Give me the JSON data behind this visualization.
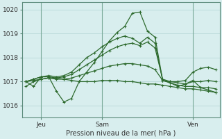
{
  "title": "Pression niveau de la mer( hPa )",
  "background_color": "#d8eeee",
  "grid_color": "#b8d8d8",
  "line_color": "#2d6a2d",
  "ylim": [
    1015.5,
    1020.3
  ],
  "yticks": [
    1016,
    1017,
    1018,
    1019,
    1020
  ],
  "xtick_labels": [
    "Jeu",
    "Sam",
    "Ven"
  ],
  "xtick_positions": [
    2,
    10,
    22
  ],
  "vline_positions": [
    2,
    10,
    22
  ],
  "series": [
    [
      1017.0,
      1016.8,
      1017.2,
      1017.2,
      1016.6,
      1016.15,
      1016.3,
      1017.0,
      1017.4,
      1017.8,
      1018.25,
      1018.7,
      1019.05,
      1019.3,
      1019.85,
      1019.9,
      1019.1,
      1018.85,
      1017.05,
      1016.95,
      1016.8,
      1016.9,
      1017.05,
      1016.75,
      1016.65,
      1016.55
    ],
    [
      1017.0,
      1017.1,
      1017.2,
      1017.25,
      1017.2,
      1017.25,
      1017.4,
      1017.7,
      1018.0,
      1018.2,
      1018.45,
      1018.65,
      1018.8,
      1018.9,
      1018.8,
      1018.6,
      1018.85,
      1018.6,
      1017.05,
      1017.0,
      1017.0,
      1017.05,
      1017.4,
      1017.55,
      1017.6,
      1017.5
    ],
    [
      1017.0,
      1017.1,
      1017.2,
      1017.2,
      1017.15,
      1017.2,
      1017.3,
      1017.5,
      1017.7,
      1017.9,
      1018.1,
      1018.3,
      1018.45,
      1018.55,
      1018.6,
      1018.5,
      1018.65,
      1018.4,
      1017.1,
      1017.0,
      1016.95,
      1016.9,
      1017.0,
      1017.0,
      1017.05,
      1017.0
    ],
    [
      1017.0,
      1017.05,
      1017.1,
      1017.15,
      1017.1,
      1017.1,
      1017.15,
      1017.25,
      1017.35,
      1017.45,
      1017.55,
      1017.65,
      1017.7,
      1017.75,
      1017.75,
      1017.7,
      1017.65,
      1017.5,
      1017.05,
      1016.95,
      1016.85,
      1016.8,
      1016.8,
      1016.75,
      1016.75,
      1016.7
    ],
    [
      1016.8,
      1017.0,
      1017.1,
      1017.15,
      1017.15,
      1017.1,
      1017.05,
      1017.0,
      1017.0,
      1017.0,
      1017.05,
      1017.05,
      1017.05,
      1017.0,
      1017.0,
      1016.95,
      1016.9,
      1016.9,
      1016.85,
      1016.8,
      1016.75,
      1016.7,
      1016.7,
      1016.65,
      1016.6,
      1016.55
    ]
  ],
  "n_points": 26,
  "marker_size": 3,
  "linewidth": 0.9
}
